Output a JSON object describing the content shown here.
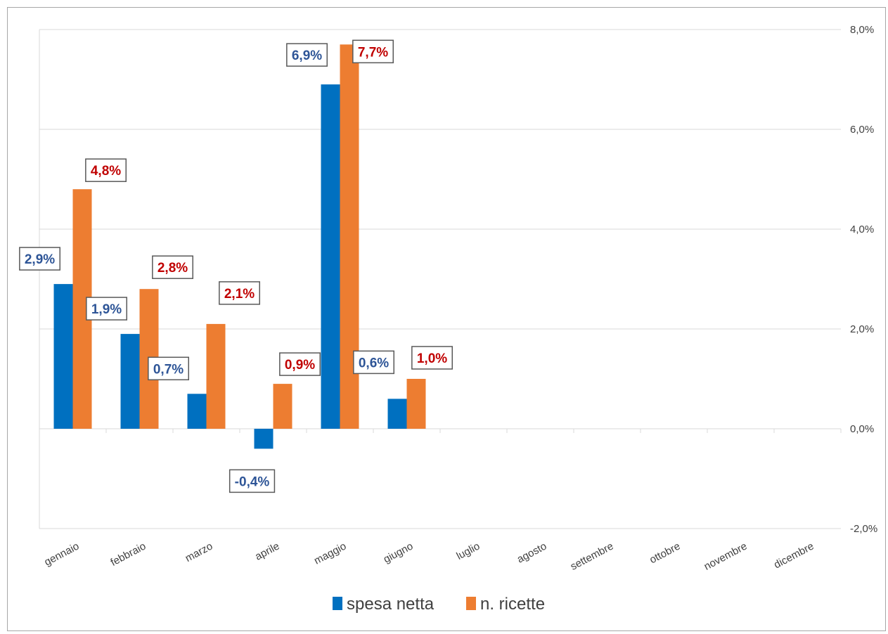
{
  "chart_data": {
    "type": "bar",
    "categories": [
      "gennaio",
      "febbraio",
      "marzo",
      "aprile",
      "maggio",
      "giugno",
      "luglio",
      "agosto",
      "settembre",
      "ottobre",
      "novembre",
      "dicembre"
    ],
    "series": [
      {
        "name": "spesa netta",
        "color": "#0070c0",
        "values": [
          2.9,
          1.9,
          0.7,
          -0.4,
          6.9,
          0.6,
          null,
          null,
          null,
          null,
          null,
          null
        ],
        "labels": [
          "2,9%",
          "1,9%",
          "0,7%",
          "-0,4%",
          "6,9%",
          "0,6%",
          null,
          null,
          null,
          null,
          null,
          null
        ],
        "label_color": "#2e5597"
      },
      {
        "name": "n. ricette",
        "color": "#ed7d31",
        "values": [
          4.8,
          2.8,
          2.1,
          0.9,
          7.7,
          1.0,
          null,
          null,
          null,
          null,
          null,
          null
        ],
        "labels": [
          "4,8%",
          "2,8%",
          "2,1%",
          "0,9%",
          "7,7%",
          "1,0%",
          null,
          null,
          null,
          null,
          null,
          null
        ],
        "label_color": "#c00000"
      }
    ],
    "ylim": [
      -2.0,
      8.0
    ],
    "y_ticks": [
      {
        "value": 8.0,
        "label": "8,0%"
      },
      {
        "value": 6.0,
        "label": "6,0%"
      },
      {
        "value": 4.0,
        "label": "4,0%"
      },
      {
        "value": 2.0,
        "label": "2,0%"
      },
      {
        "value": 0.0,
        "label": "0,0%"
      },
      {
        "value": -2.0,
        "label": "-2,0%"
      }
    ],
    "y_axis_side": "right",
    "grid": true,
    "legend_position": "bottom",
    "title": "",
    "xlabel": "",
    "ylabel": ""
  }
}
